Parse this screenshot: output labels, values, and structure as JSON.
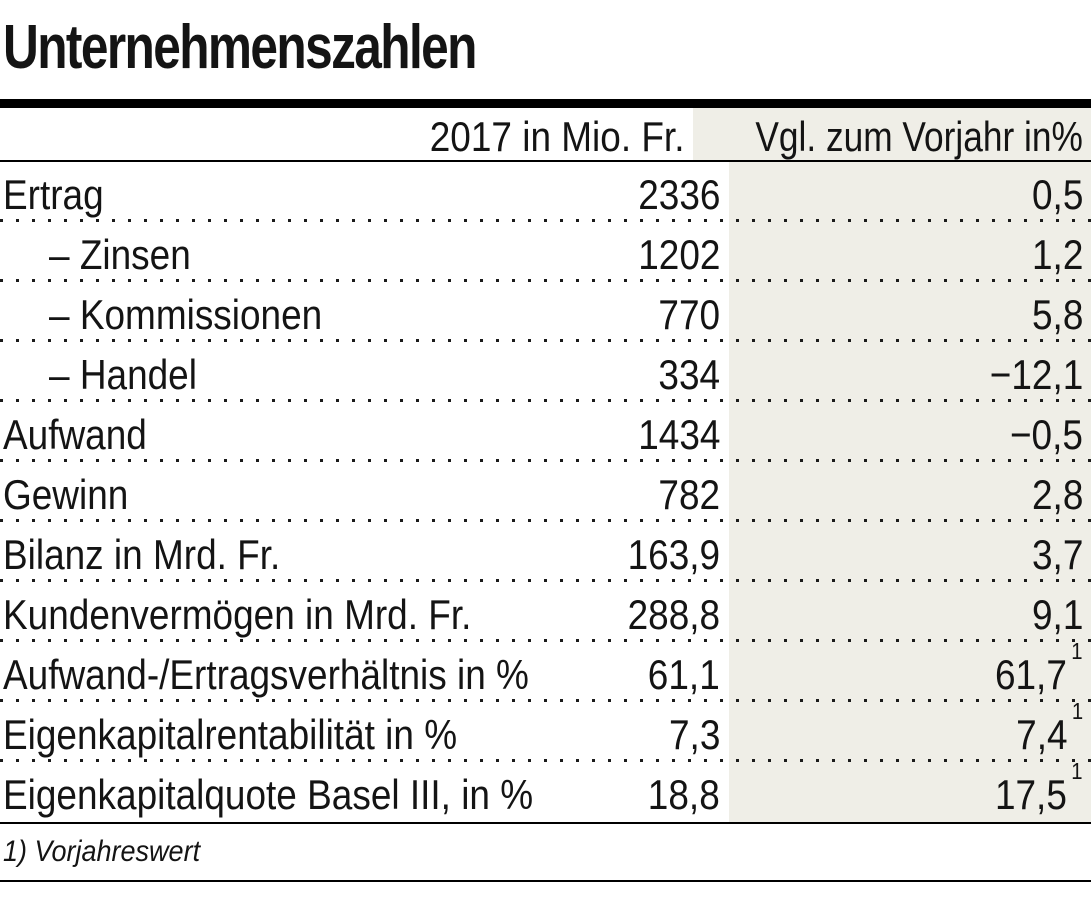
{
  "chart_data": {
    "type": "table",
    "title": "Unternehmenszahlen",
    "col_headers": {
      "value": "2017 in Mio. Fr.",
      "change": "Vgl. zum Vorjahr in%"
    },
    "rows": [
      {
        "label": "Ertrag",
        "indent": false,
        "value": "2336",
        "change": "0,5",
        "sup": ""
      },
      {
        "label": "– Zinsen",
        "indent": true,
        "value": "1202",
        "change": "1,2",
        "sup": ""
      },
      {
        "label": "– Kommissionen",
        "indent": true,
        "value": "770",
        "change": "5,8",
        "sup": ""
      },
      {
        "label": "– Handel",
        "indent": true,
        "value": "334",
        "change": "−12,1",
        "sup": ""
      },
      {
        "label": "Aufwand",
        "indent": false,
        "value": "1434",
        "change": "−0,5",
        "sup": ""
      },
      {
        "label": "Gewinn",
        "indent": false,
        "value": "782",
        "change": "2,8",
        "sup": ""
      },
      {
        "label": "Bilanz in Mrd. Fr.",
        "indent": false,
        "value": "163,9",
        "change": "3,7",
        "sup": ""
      },
      {
        "label": "Kundenvermögen in Mrd. Fr.",
        "indent": false,
        "value": "288,8",
        "change": "9,1",
        "sup": ""
      },
      {
        "label": "Aufwand-/Ertragsverhältnis in %",
        "indent": false,
        "value": "61,1",
        "change": "61,7",
        "sup": "1"
      },
      {
        "label": "Eigenkapitalrentabilität in %",
        "indent": false,
        "value": "7,3",
        "change": "7,4",
        "sup": "1"
      },
      {
        "label": "Eigenkapitalquote Basel III, in %",
        "indent": false,
        "value": "18,8",
        "change": "17,5",
        "sup": "1"
      }
    ],
    "footnote": "1) Vorjahreswert"
  },
  "colors": {
    "column_shade": "#efeee7",
    "text": "#141414",
    "rule": "#000000"
  }
}
